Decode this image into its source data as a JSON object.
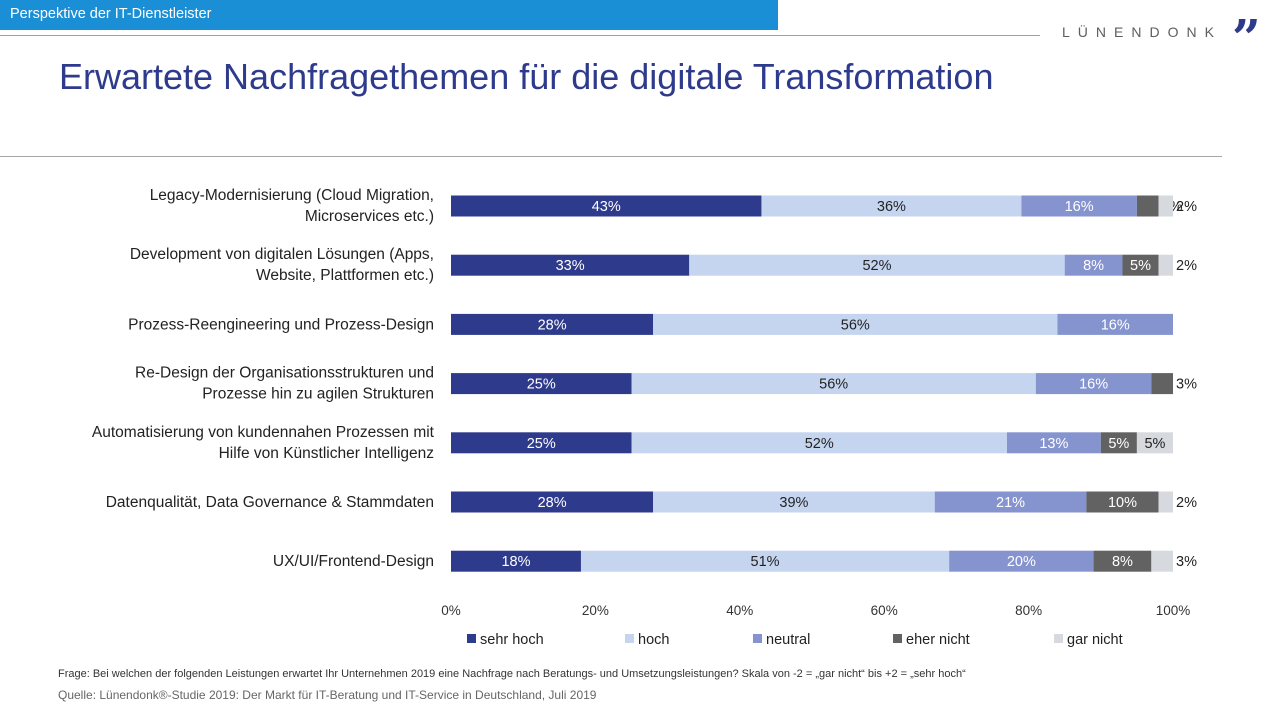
{
  "header": {
    "section_label": "Perspektive der IT-Dienstleister",
    "logo_text": "LÜNENDONK",
    "logo_mark": "”",
    "title": "Erwartete Nachfragethemen für die digitale Transformation"
  },
  "colors": {
    "sehr_hoch": "#2e3a8c",
    "hoch": "#c5d5f0",
    "neutral": "#8593cf",
    "eher_nicht": "#626262",
    "gar_nicht": "#d6d9dd"
  },
  "chart_data": {
    "type": "bar",
    "orientation": "horizontal-stacked",
    "x_ticks": [
      "0%",
      "20%",
      "40%",
      "60%",
      "80%",
      "100%"
    ],
    "xlim": [
      0,
      100
    ],
    "legend_position": "bottom",
    "categories": [
      [
        "Legacy-Modernisierung (Cloud Migration,",
        "Microservices etc.)"
      ],
      [
        "Development von digitalen Lösungen (Apps,",
        "Website, Plattformen etc.)"
      ],
      [
        "Prozess-Reengineering und Prozess-Design"
      ],
      [
        "Re-Design der Organisationsstrukturen und",
        "Prozesse hin zu agilen Strukturen"
      ],
      [
        "Automatisierung von kundennahen Prozessen mit",
        "Hilfe von Künstlicher Intelligenz"
      ],
      [
        "Datenqualität, Data Governance & Stammdaten"
      ],
      [
        "UX/UI/Frontend-Design"
      ]
    ],
    "series": [
      {
        "name": "sehr hoch",
        "values": [
          43,
          33,
          28,
          25,
          25,
          28,
          18
        ],
        "labels": [
          "43%",
          "33%",
          "28%",
          "25%",
          "25%",
          "28%",
          "18%"
        ]
      },
      {
        "name": "hoch",
        "values": [
          36,
          52,
          56,
          56,
          52,
          39,
          51
        ],
        "labels": [
          "36%",
          "52%",
          "56%",
          "56%",
          "52%",
          "39%",
          "51%"
        ]
      },
      {
        "name": "neutral",
        "values": [
          16,
          8,
          16,
          16,
          13,
          21,
          20
        ],
        "labels": [
          "16%",
          "8%",
          "16%",
          "16%",
          "13%",
          "21%",
          "20%"
        ]
      },
      {
        "name": "eher nicht",
        "values": [
          3,
          5,
          0,
          3,
          5,
          10,
          8
        ],
        "labels": [
          "3%",
          "5%",
          "",
          "3%",
          "5%",
          "10%",
          "8%"
        ]
      },
      {
        "name": "gar nicht",
        "values": [
          2,
          2,
          0,
          0,
          5,
          2,
          3
        ],
        "labels": [
          "2%",
          "2%",
          "",
          "",
          "5%",
          "2%",
          "3%"
        ]
      }
    ]
  },
  "footer": {
    "question": "Frage: Bei welchen der folgenden Leistungen erwartet Ihr Unternehmen 2019 eine Nachfrage nach Beratungs- und Umsetzungsleistungen? Skala von -2 = „gar nicht“ bis +2 = „sehr hoch“",
    "source": "Quelle: Lünendonk®-Studie 2019: Der Markt für IT-Beratung und IT-Service in Deutschland, Juli 2019"
  }
}
